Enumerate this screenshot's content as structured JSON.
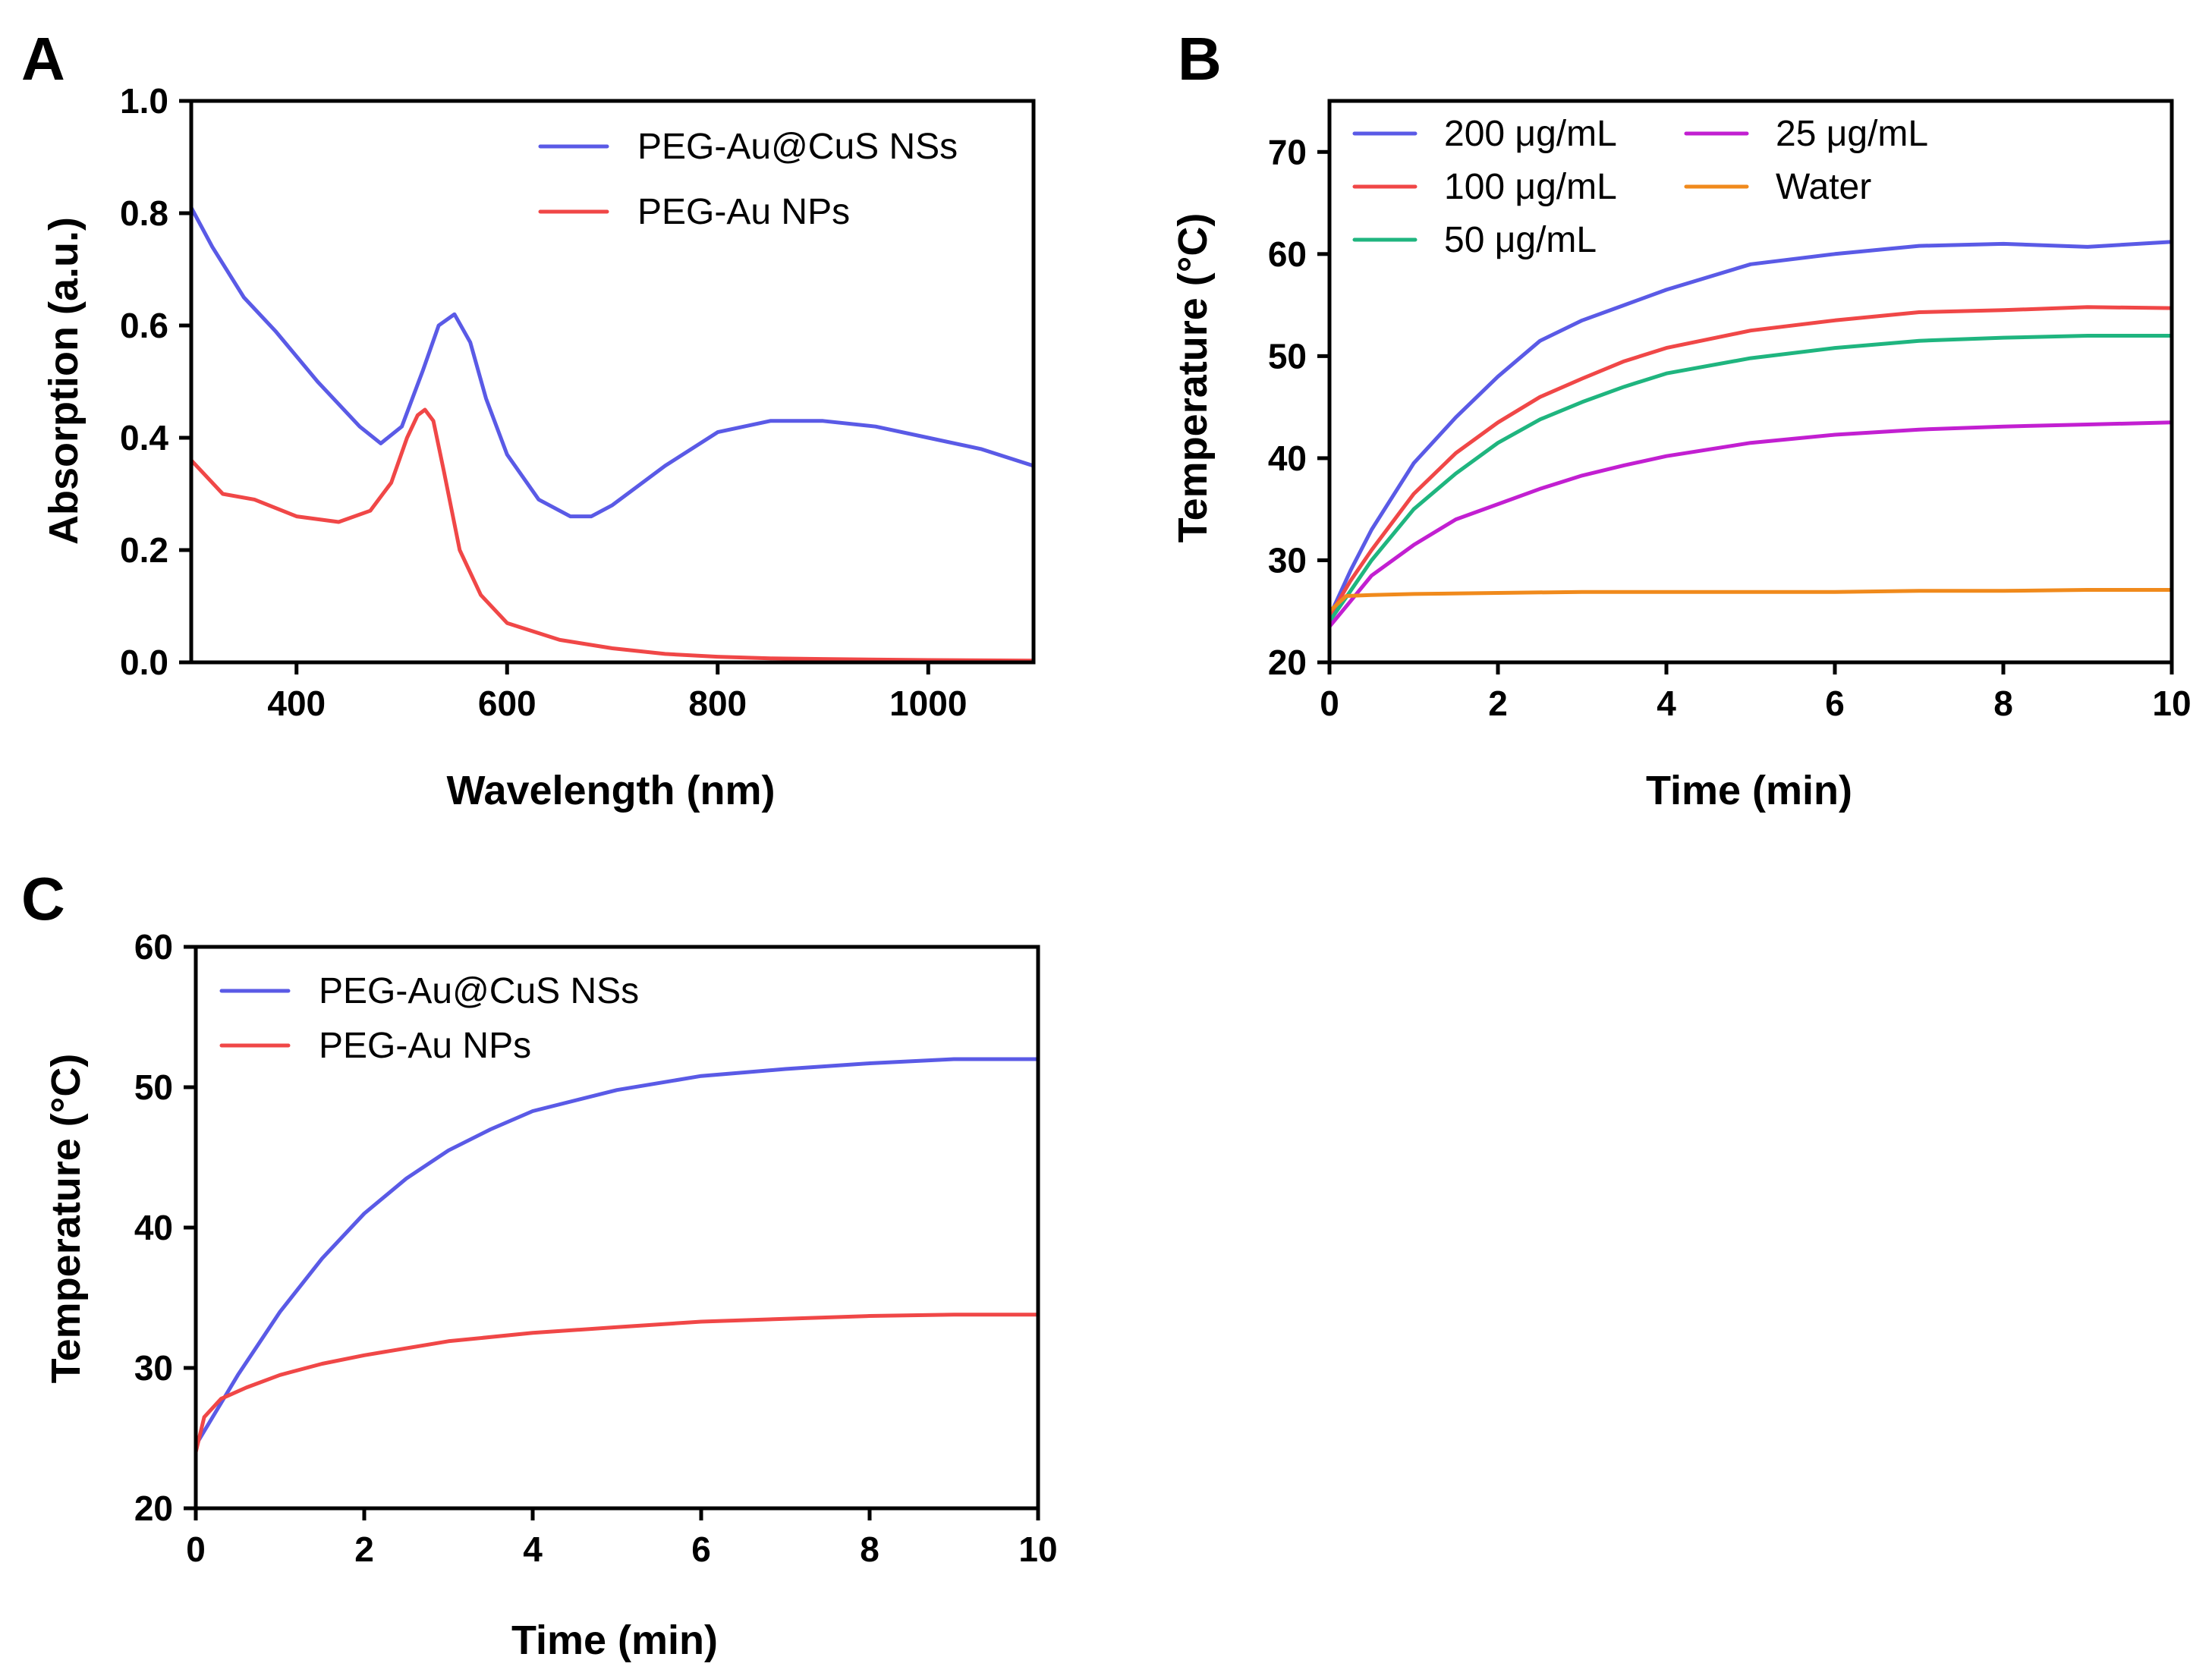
{
  "figure": {
    "panels": [
      {
        "letter": "A"
      },
      {
        "letter": "B"
      },
      {
        "letter": "C"
      }
    ]
  },
  "chart_data": [
    {
      "panel": "A",
      "type": "line",
      "title": "",
      "xlabel": "Wavelength (nm)",
      "ylabel": "Absorption (a.u.)",
      "xlim": [
        300,
        1100
      ],
      "ylim": [
        0.0,
        1.0
      ],
      "xticks": [
        400,
        600,
        800,
        1000
      ],
      "xtick_labels": [
        "400",
        "600",
        "800",
        "1000"
      ],
      "yticks": [
        0.0,
        0.2,
        0.4,
        0.6,
        0.8,
        1.0
      ],
      "ytick_labels": [
        "0.0",
        "0.2",
        "0.4",
        "0.6",
        "0.8",
        "1.0"
      ],
      "legend_position": "top-right",
      "series": [
        {
          "name": "PEG-Au@CuS NSs",
          "color": "#5a5ae6",
          "x": [
            300,
            320,
            350,
            380,
            420,
            460,
            480,
            500,
            520,
            535,
            550,
            565,
            580,
            600,
            630,
            660,
            680,
            700,
            750,
            800,
            850,
            900,
            950,
            1000,
            1050,
            1100
          ],
          "y": [
            0.81,
            0.74,
            0.65,
            0.59,
            0.5,
            0.42,
            0.39,
            0.42,
            0.52,
            0.6,
            0.62,
            0.57,
            0.47,
            0.37,
            0.29,
            0.26,
            0.26,
            0.28,
            0.35,
            0.41,
            0.43,
            0.43,
            0.42,
            0.4,
            0.38,
            0.35
          ]
        },
        {
          "name": "PEG-Au NPs",
          "color": "#f04747",
          "x": [
            300,
            330,
            360,
            400,
            440,
            470,
            490,
            505,
            515,
            522,
            530,
            540,
            555,
            575,
            600,
            650,
            700,
            750,
            800,
            850,
            900,
            1000,
            1100
          ],
          "y": [
            0.36,
            0.3,
            0.29,
            0.26,
            0.25,
            0.27,
            0.32,
            0.4,
            0.44,
            0.45,
            0.43,
            0.34,
            0.2,
            0.12,
            0.07,
            0.04,
            0.025,
            0.015,
            0.01,
            0.007,
            0.006,
            0.004,
            0.003
          ]
        }
      ]
    },
    {
      "panel": "B",
      "type": "line",
      "title": "",
      "xlabel": "Time (min)",
      "ylabel": "Temperature (°C)",
      "xlim": [
        0,
        10
      ],
      "ylim": [
        20,
        75
      ],
      "xticks": [
        0,
        2,
        4,
        6,
        8,
        10
      ],
      "xtick_labels": [
        "0",
        "2",
        "4",
        "6",
        "8",
        "10"
      ],
      "yticks": [
        20,
        30,
        40,
        50,
        60,
        70
      ],
      "ytick_labels": [
        "20",
        "30",
        "40",
        "50",
        "60",
        "70"
      ],
      "legend_position": "top-left",
      "series": [
        {
          "name": "200 μg/mL",
          "color": "#5a5ae6",
          "x": [
            0,
            0.25,
            0.5,
            1,
            1.5,
            2,
            2.5,
            3,
            3.5,
            4,
            5,
            6,
            7,
            8,
            9,
            10
          ],
          "y": [
            24.5,
            29,
            33,
            39.5,
            44,
            48,
            51.5,
            53.5,
            55,
            56.5,
            59,
            60,
            60.8,
            61,
            60.7,
            61.2
          ]
        },
        {
          "name": "100 μg/mL",
          "color": "#f04747",
          "x": [
            0,
            0.25,
            0.5,
            1,
            1.5,
            2,
            2.5,
            3,
            3.5,
            4,
            5,
            6,
            7,
            8,
            9,
            10
          ],
          "y": [
            24.5,
            28,
            31,
            36.5,
            40.5,
            43.5,
            46,
            47.8,
            49.5,
            50.8,
            52.5,
            53.5,
            54.3,
            54.5,
            54.8,
            54.7
          ]
        },
        {
          "name": "50 μg/mL",
          "color": "#1fb57f",
          "x": [
            0,
            0.25,
            0.5,
            1,
            1.5,
            2,
            2.5,
            3,
            3.5,
            4,
            5,
            6,
            7,
            8,
            9,
            10
          ],
          "y": [
            24.0,
            27,
            30,
            35,
            38.5,
            41.5,
            43.8,
            45.5,
            47,
            48.3,
            49.8,
            50.8,
            51.5,
            51.8,
            52,
            52
          ]
        },
        {
          "name": "25 μg/mL",
          "color": "#c21fd1",
          "x": [
            0,
            0.25,
            0.5,
            1,
            1.5,
            2,
            2.5,
            3,
            3.5,
            4,
            5,
            6,
            7,
            8,
            9,
            10
          ],
          "y": [
            23.5,
            26,
            28.5,
            31.5,
            34,
            35.5,
            37,
            38.3,
            39.3,
            40.2,
            41.5,
            42.3,
            42.8,
            43.1,
            43.3,
            43.5
          ]
        },
        {
          "name": "Water",
          "color": "#f08a1c",
          "x": [
            0,
            0.2,
            0.5,
            1,
            2,
            3,
            4,
            5,
            6,
            7,
            8,
            9,
            10
          ],
          "y": [
            25.0,
            26.5,
            26.6,
            26.7,
            26.8,
            26.9,
            26.9,
            26.9,
            26.9,
            27.0,
            27.0,
            27.1,
            27.1
          ]
        }
      ]
    },
    {
      "panel": "C",
      "type": "line",
      "title": "",
      "xlabel": "Time (min)",
      "ylabel": "Temperature (°C)",
      "xlim": [
        0,
        10
      ],
      "ylim": [
        20,
        60
      ],
      "xticks": [
        0,
        2,
        4,
        6,
        8,
        10
      ],
      "xtick_labels": [
        "0",
        "2",
        "4",
        "6",
        "8",
        "10"
      ],
      "yticks": [
        20,
        30,
        40,
        50,
        60
      ],
      "ytick_labels": [
        "20",
        "30",
        "40",
        "50",
        "60"
      ],
      "legend_position": "top-left",
      "series": [
        {
          "name": "PEG-Au@CuS NSs",
          "color": "#5a5ae6",
          "x": [
            0,
            0.25,
            0.5,
            1,
            1.5,
            2,
            2.5,
            3,
            3.5,
            4,
            5,
            6,
            7,
            8,
            9,
            10
          ],
          "y": [
            24.5,
            27,
            29.5,
            34,
            37.8,
            41,
            43.5,
            45.5,
            47,
            48.3,
            49.8,
            50.8,
            51.3,
            51.7,
            52,
            52
          ]
        },
        {
          "name": "PEG-Au NPs",
          "color": "#f04747",
          "x": [
            0,
            0.1,
            0.3,
            0.6,
            1,
            1.5,
            2,
            3,
            4,
            5,
            6,
            7,
            8,
            9,
            10
          ],
          "y": [
            24.0,
            26.5,
            27.8,
            28.6,
            29.5,
            30.3,
            30.9,
            31.9,
            32.5,
            32.9,
            33.3,
            33.5,
            33.7,
            33.8,
            33.8
          ]
        }
      ]
    }
  ]
}
